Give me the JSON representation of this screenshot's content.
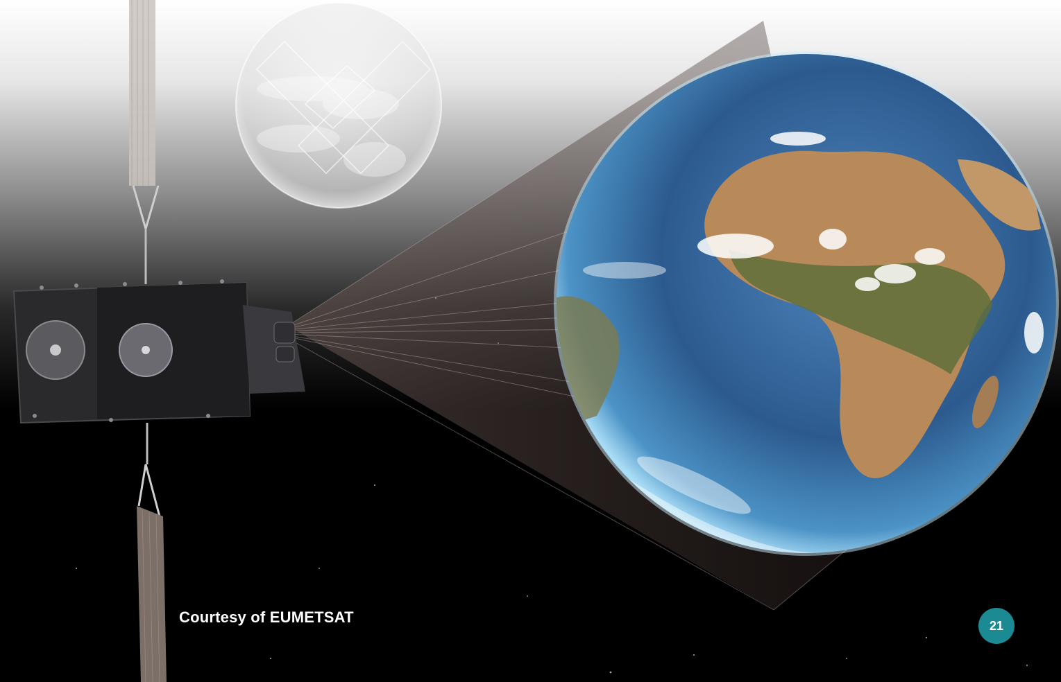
{
  "caption": "Courtesy of EUMETSAT",
  "page_number": "21",
  "colors": {
    "badge": "#1b8a92",
    "sky_top": "#ffffff",
    "sky_bottom": "#000000",
    "ocean": "#2e5f95",
    "land": "#b88a5a"
  },
  "icons": {
    "satellite": "satellite-icon",
    "earth": "earth-globe",
    "ghost_earth": "faded-earth-globe"
  }
}
